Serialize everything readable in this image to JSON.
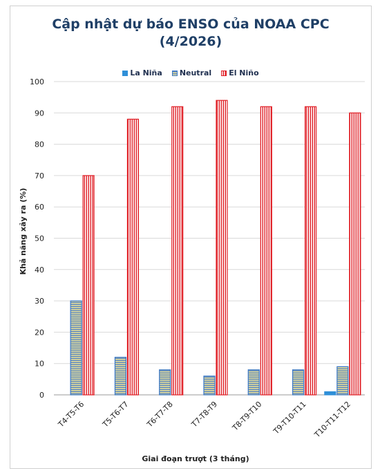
{
  "chart_data": {
    "type": "bar",
    "title_line1": "Cập nhật dự báo ENSO của NOAA CPC",
    "title_line2": "(4/2026)",
    "xlabel": "Giai đoạn trượt (3 tháng)",
    "ylabel": "Khả năng xảy ra (%)",
    "ylim": [
      0,
      100
    ],
    "yticks": [
      0,
      10,
      20,
      30,
      40,
      50,
      60,
      70,
      80,
      90,
      100
    ],
    "grid": true,
    "legend_position": "top",
    "categories": [
      "T4-T5-T6",
      "T5-T6-T7",
      "T6-T7-T8",
      "T7-T8-T9",
      "T8-T9-T10",
      "T9-T10-T11",
      "T10-T11-T12"
    ],
    "series": [
      {
        "name": "La Niña",
        "values": [
          0,
          0,
          0,
          0,
          0,
          0,
          1
        ],
        "color": "#2f8fd8"
      },
      {
        "name": "Neutral",
        "values": [
          30,
          12,
          8,
          6,
          8,
          8,
          9
        ],
        "color": "#3a78c8"
      },
      {
        "name": "El Niño",
        "values": [
          70,
          88,
          92,
          94,
          92,
          92,
          90
        ],
        "color": "#e01e25"
      }
    ]
  }
}
